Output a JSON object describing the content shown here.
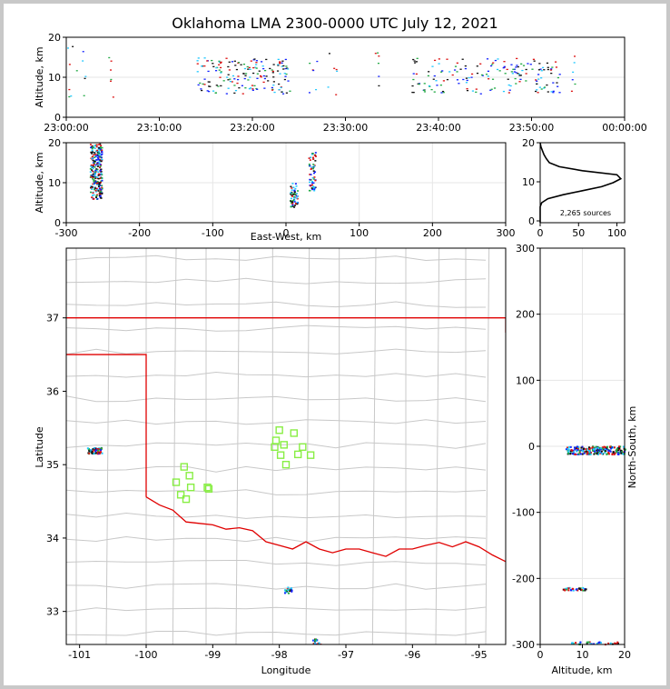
{
  "title": "Oklahoma LMA 2300-0000 UTC July 12, 2021",
  "sources_label": "2,265 sources",
  "colors": {
    "state_border": "#e00000",
    "county": "#c8c8c8",
    "station": "#88ee44",
    "early": "#1020ff",
    "mid1": "#20c8ff",
    "mid2": "#22aa44",
    "mid3": "#111111",
    "late": "#dd1010"
  },
  "chart_data": [
    {
      "type": "scatter",
      "panel": "altitude-vs-time",
      "ylabel": "Altitude, km",
      "ylim": [
        0,
        20
      ],
      "yticks": [
        "0",
        "10",
        "20"
      ],
      "xticks": [
        "23:00:00",
        "23:10:00",
        "23:20:00",
        "23:30:00",
        "23:40:00",
        "23:50:00",
        "00:00:00"
      ],
      "clusters_minutes": [
        [
          14,
          24
        ],
        [
          37,
          53
        ]
      ],
      "sparse_minutes": [
        0,
        1,
        4,
        26,
        28,
        33,
        54
      ]
    },
    {
      "type": "scatter",
      "panel": "altitude-vs-east-west",
      "xlabel": "East-West, km",
      "ylabel": "Altitude, km",
      "xlim": [
        -300,
        300
      ],
      "ylim": [
        0,
        20
      ],
      "xticks": [
        "-300",
        "-200",
        "-100",
        "0",
        "100",
        "200",
        "300"
      ],
      "yticks": [
        "0",
        "10",
        "20"
      ],
      "clusters_km": [
        {
          "x": -260,
          "zmin": 6,
          "zmax": 20
        },
        {
          "x": 35,
          "zmin": 8,
          "zmax": 18
        },
        {
          "x": 10,
          "zmin": 4,
          "zmax": 10
        }
      ]
    },
    {
      "type": "line",
      "panel": "altitude-histogram",
      "xlim": [
        0,
        110
      ],
      "ylim": [
        0,
        20
      ],
      "xticks": [
        "0",
        "50",
        "100"
      ],
      "yticks": [
        "0",
        "10",
        "20"
      ],
      "profile": [
        [
          0,
          0
        ],
        [
          0,
          4
        ],
        [
          2,
          5
        ],
        [
          10,
          6
        ],
        [
          30,
          7
        ],
        [
          55,
          8
        ],
        [
          80,
          9
        ],
        [
          95,
          10
        ],
        [
          105,
          11
        ],
        [
          100,
          12
        ],
        [
          55,
          13
        ],
        [
          25,
          14
        ],
        [
          12,
          15
        ],
        [
          8,
          16
        ],
        [
          5,
          17
        ],
        [
          3,
          18
        ],
        [
          1,
          19
        ],
        [
          0,
          20
        ]
      ]
    },
    {
      "type": "scatter",
      "panel": "plan-view-map",
      "xlabel": "Longitude",
      "ylabel": "Latitude",
      "xlim": [
        -101.2,
        -94.6
      ],
      "ylim": [
        32.55,
        37.95
      ],
      "xticks": [
        "-101",
        "-100",
        "-99",
        "-98",
        "-97",
        "-96",
        "-95"
      ],
      "yticks": [
        "33",
        "34",
        "35",
        "36",
        "37"
      ],
      "stations": [
        [
          -98.0,
          35.47
        ],
        [
          -97.78,
          35.43
        ],
        [
          -98.05,
          35.33
        ],
        [
          -97.93,
          35.27
        ],
        [
          -98.07,
          35.24
        ],
        [
          -97.65,
          35.24
        ],
        [
          -97.98,
          35.13
        ],
        [
          -97.72,
          35.14
        ],
        [
          -97.53,
          35.13
        ],
        [
          -97.9,
          35.0
        ],
        [
          -99.43,
          34.97
        ],
        [
          -99.35,
          34.85
        ],
        [
          -99.55,
          34.76
        ],
        [
          -99.33,
          34.69
        ],
        [
          -99.08,
          34.69
        ],
        [
          -99.06,
          34.67
        ],
        [
          -99.48,
          34.59
        ],
        [
          -99.4,
          34.53
        ]
      ],
      "clusters": [
        [
          -100.78,
          35.2
        ],
        [
          -97.88,
          33.3
        ],
        [
          -97.45,
          32.6
        ]
      ]
    },
    {
      "type": "scatter",
      "panel": "north-south-vs-altitude",
      "xlabel": "Altitude, km",
      "ylabel": "North-South, km",
      "xlim": [
        0,
        20
      ],
      "ylim": [
        -300,
        300
      ],
      "xticks": [
        "0",
        "10",
        "20"
      ],
      "yticks": [
        "-300",
        "-200",
        "-100",
        "0",
        "100",
        "200",
        "300"
      ],
      "clusters": [
        {
          "y": -5,
          "zmin": 6,
          "zmax": 20
        },
        {
          "y": -215,
          "zmin": 5,
          "zmax": 11
        },
        {
          "y": -297,
          "zmin": 7,
          "zmax": 19
        }
      ]
    }
  ]
}
